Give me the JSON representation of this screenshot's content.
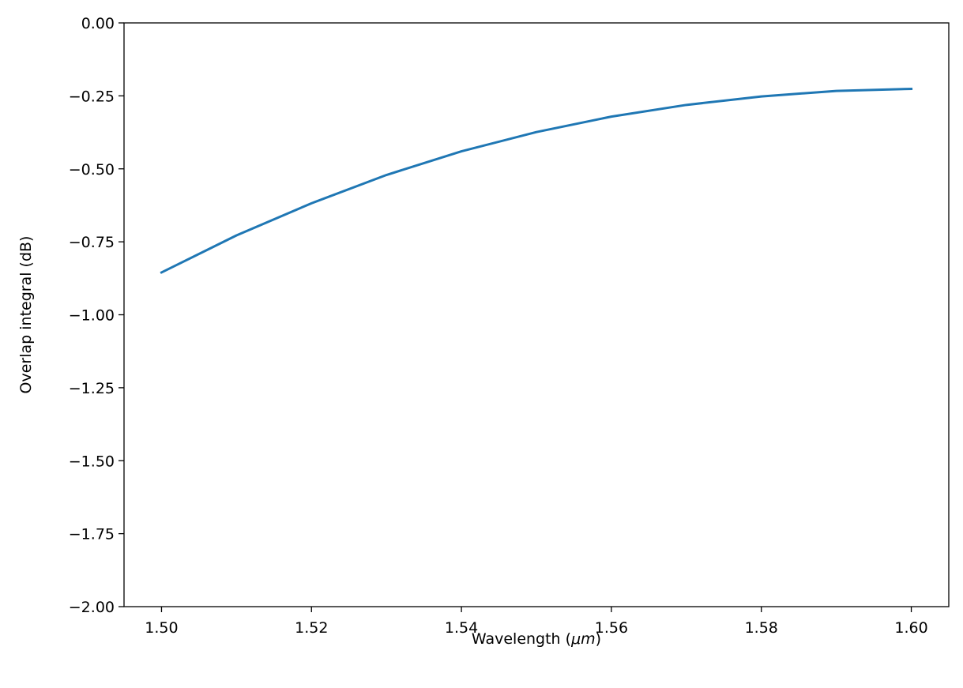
{
  "chart_data": {
    "type": "line",
    "title": "",
    "xlabel_prefix": "Wavelength (",
    "xlabel_unit": "μm",
    "xlabel_suffix": ")",
    "ylabel": "Overlap integral (dB)",
    "xlim": [
      1.495,
      1.605
    ],
    "ylim": [
      -2.0,
      0.0
    ],
    "x_ticks": [
      1.5,
      1.52,
      1.54,
      1.56,
      1.58,
      1.6
    ],
    "x_tick_labels": [
      "1.50",
      "1.52",
      "1.54",
      "1.56",
      "1.58",
      "1.60"
    ],
    "y_ticks": [
      0.0,
      -0.25,
      -0.5,
      -0.75,
      -1.0,
      -1.25,
      -1.5,
      -1.75,
      -2.0
    ],
    "y_tick_labels": [
      "0.00",
      "−0.25",
      "−0.50",
      "−0.75",
      "−1.00",
      "−1.25",
      "−1.50",
      "−1.75",
      "−2.00"
    ],
    "grid": false,
    "series": [
      {
        "color": "#1f77b4",
        "x": [
          1.5,
          1.51,
          1.52,
          1.53,
          1.54,
          1.55,
          1.56,
          1.57,
          1.58,
          1.59,
          1.6
        ],
        "y": [
          -0.855,
          -0.728,
          -0.618,
          -0.521,
          -0.44,
          -0.374,
          -0.321,
          -0.281,
          -0.252,
          -0.233,
          -0.226
        ]
      }
    ]
  }
}
